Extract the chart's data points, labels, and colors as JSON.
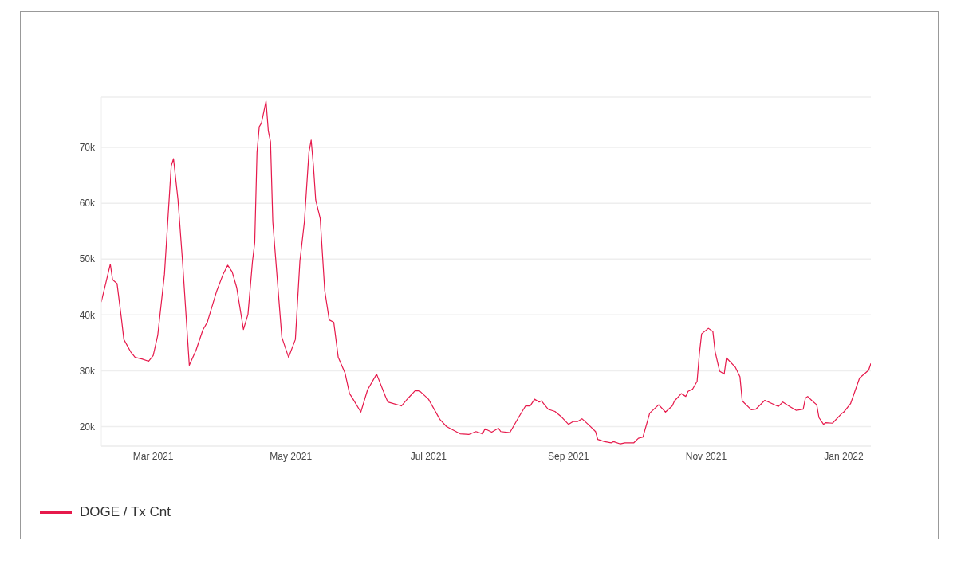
{
  "chart_data": {
    "type": "line",
    "x": [
      "2021-02-06",
      "2021-02-10",
      "2021-02-11",
      "2021-02-13",
      "2021-02-15",
      "2021-02-16",
      "2021-02-19",
      "2021-02-21",
      "2021-02-24",
      "2021-02-27",
      "2021-03-01",
      "2021-03-03",
      "2021-03-06",
      "2021-03-09",
      "2021-03-10",
      "2021-03-12",
      "2021-03-14",
      "2021-03-17",
      "2021-03-20",
      "2021-03-23",
      "2021-03-25",
      "2021-03-29",
      "2021-04-01",
      "2021-04-03",
      "2021-04-05",
      "2021-04-07",
      "2021-04-10",
      "2021-04-12",
      "2021-04-14",
      "2021-04-15",
      "2021-04-16",
      "2021-04-17",
      "2021-04-18",
      "2021-04-20",
      "2021-04-21",
      "2021-04-22",
      "2021-04-23",
      "2021-04-25",
      "2021-04-27",
      "2021-04-30",
      "2021-05-03",
      "2021-05-05",
      "2021-05-07",
      "2021-05-09",
      "2021-05-10",
      "2021-05-11",
      "2021-05-12",
      "2021-05-14",
      "2021-05-16",
      "2021-05-18",
      "2021-05-20",
      "2021-05-22",
      "2021-05-25",
      "2021-05-27",
      "2021-05-28",
      "2021-06-01",
      "2021-06-04",
      "2021-06-08",
      "2021-06-12",
      "2021-06-13",
      "2021-06-19",
      "2021-06-22",
      "2021-06-25",
      "2021-06-27",
      "2021-07-01",
      "2021-07-06",
      "2021-07-09",
      "2021-07-15",
      "2021-07-19",
      "2021-07-22",
      "2021-07-25",
      "2021-07-26",
      "2021-07-29",
      "2021-08-01",
      "2021-08-02",
      "2021-08-06",
      "2021-08-10",
      "2021-08-13",
      "2021-08-15",
      "2021-08-17",
      "2021-08-19",
      "2021-08-20",
      "2021-08-23",
      "2021-08-26",
      "2021-08-29",
      "2021-09-01",
      "2021-09-03",
      "2021-09-05",
      "2021-09-07",
      "2021-09-10",
      "2021-09-13",
      "2021-09-14",
      "2021-09-17",
      "2021-09-20",
      "2021-09-21",
      "2021-09-24",
      "2021-09-26",
      "2021-09-30",
      "2021-10-02",
      "2021-10-04",
      "2021-10-07",
      "2021-10-11",
      "2021-10-14",
      "2021-10-17",
      "2021-10-18",
      "2021-10-21",
      "2021-10-23",
      "2021-10-24",
      "2021-10-26",
      "2021-10-28",
      "2021-10-29",
      "2021-10-30",
      "2021-11-02",
      "2021-11-04",
      "2021-11-05",
      "2021-11-07",
      "2021-11-09",
      "2021-11-10",
      "2021-11-14",
      "2021-11-16",
      "2021-11-17",
      "2021-11-21",
      "2021-11-23",
      "2021-11-27",
      "2021-12-03",
      "2021-12-05",
      "2021-12-08",
      "2021-12-11",
      "2021-12-14",
      "2021-12-15",
      "2021-12-16",
      "2021-12-18",
      "2021-12-20",
      "2021-12-21",
      "2021-12-23",
      "2021-12-24",
      "2021-12-27",
      "2021-12-31",
      "2022-01-01",
      "2022-01-04",
      "2022-01-08",
      "2022-01-12",
      "2022-01-13"
    ],
    "series": [
      {
        "name": "DOGE / Tx Cnt",
        "color": "#e6194b",
        "values": [
          42300,
          49100,
          46300,
          45600,
          39100,
          35600,
          33400,
          32400,
          32100,
          31700,
          32700,
          36300,
          47300,
          66700,
          68000,
          60600,
          49600,
          31000,
          33700,
          37300,
          38700,
          44100,
          47300,
          48900,
          47700,
          44900,
          37400,
          40100,
          49600,
          53000,
          69100,
          73700,
          74400,
          78300,
          73000,
          71000,
          56700,
          46300,
          36000,
          32400,
          35600,
          49600,
          56700,
          69100,
          71300,
          66700,
          60600,
          57300,
          44400,
          39100,
          38700,
          32400,
          29600,
          25900,
          25300,
          22600,
          26600,
          29400,
          25300,
          24400,
          23700,
          25100,
          26400,
          26400,
          24900,
          21300,
          20000,
          18700,
          18600,
          19100,
          18700,
          19600,
          19000,
          19700,
          19100,
          18900,
          21700,
          23700,
          23700,
          24900,
          24400,
          24600,
          23100,
          22700,
          21700,
          20400,
          20900,
          20900,
          21400,
          20300,
          19100,
          17700,
          17300,
          17100,
          17300,
          16900,
          17100,
          17100,
          17900,
          18100,
          22400,
          23900,
          22600,
          23700,
          24600,
          25900,
          25400,
          26300,
          26700,
          28100,
          33000,
          36600,
          37600,
          37000,
          33400,
          29900,
          29400,
          32300,
          30600,
          28900,
          24600,
          23000,
          23100,
          24700,
          23600,
          24400,
          23600,
          22900,
          23100,
          25100,
          25400,
          24600,
          23900,
          21600,
          20400,
          20700,
          20600,
          22300,
          22600,
          24100,
          28700,
          30100,
          31300
        ]
      }
    ],
    "xlim": [
      "2021-02-06",
      "2022-01-13"
    ],
    "xticks": [
      {
        "value": "2021-03-01",
        "label": "Mar 2021"
      },
      {
        "value": "2021-05-01",
        "label": "May 2021"
      },
      {
        "value": "2021-07-01",
        "label": "Jul 2021"
      },
      {
        "value": "2021-09-01",
        "label": "Sep 2021"
      },
      {
        "value": "2021-11-01",
        "label": "Nov 2021"
      },
      {
        "value": "2022-01-01",
        "label": "Jan 2022"
      }
    ],
    "ylim": [
      16500,
      79000
    ],
    "yticks": [
      {
        "value": 20000,
        "label": "20k"
      },
      {
        "value": 30000,
        "label": "30k"
      },
      {
        "value": 40000,
        "label": "40k"
      },
      {
        "value": 50000,
        "label": "50k"
      },
      {
        "value": 60000,
        "label": "60k"
      },
      {
        "value": 70000,
        "label": "70k"
      }
    ],
    "grid": "y",
    "legend": "bottom left",
    "marker": "none",
    "line_style": "solid"
  }
}
